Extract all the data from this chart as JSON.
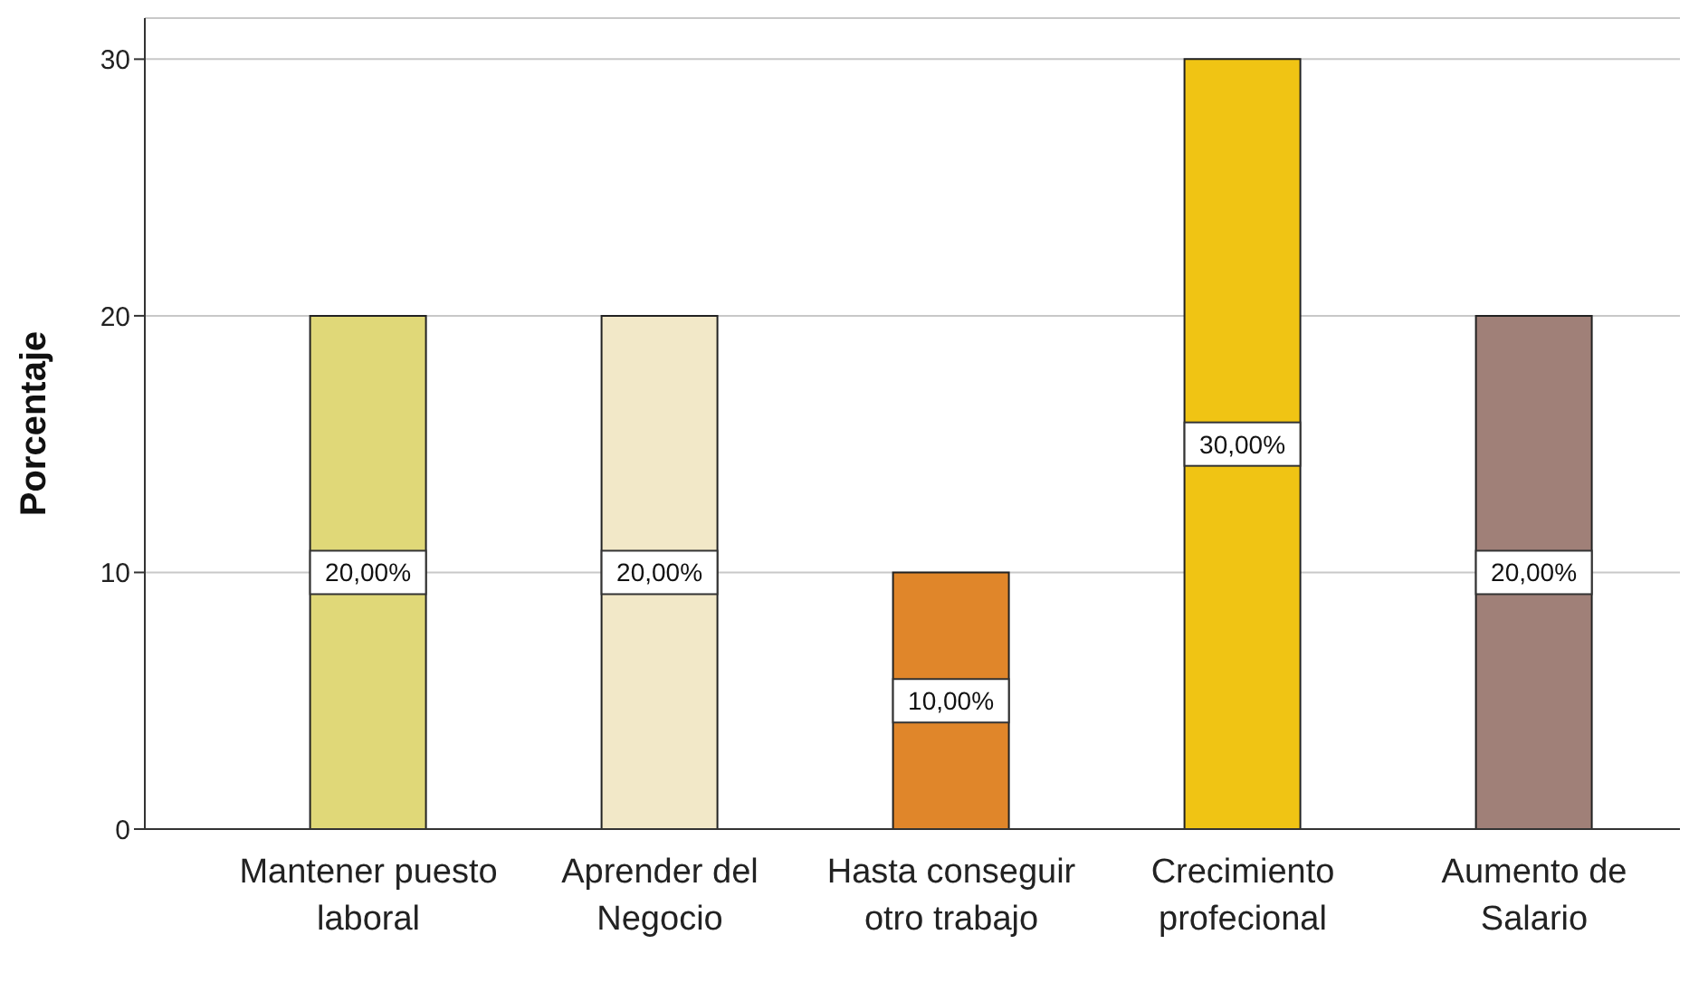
{
  "chart_data": {
    "type": "bar",
    "ylabel": "Porcentaje",
    "categories": [
      "Mantener puesto laboral",
      "Aprender del Negocio",
      "Hasta conseguir otro trabajo",
      "Crecimiento profecional",
      "Aumento de Salario"
    ],
    "values": [
      20,
      20,
      10,
      30,
      20
    ],
    "colors": [
      "#e0d878",
      "#f2e8c8",
      "#e0862a",
      "#f0c414",
      "#a08078"
    ],
    "value_labels": [
      "20,00%",
      "20,00%",
      "10,00%",
      "30,00%",
      "20,00%"
    ],
    "ylim": [
      0,
      31.6
    ],
    "yticks": [
      0,
      10,
      20,
      30
    ],
    "grid": "y"
  }
}
